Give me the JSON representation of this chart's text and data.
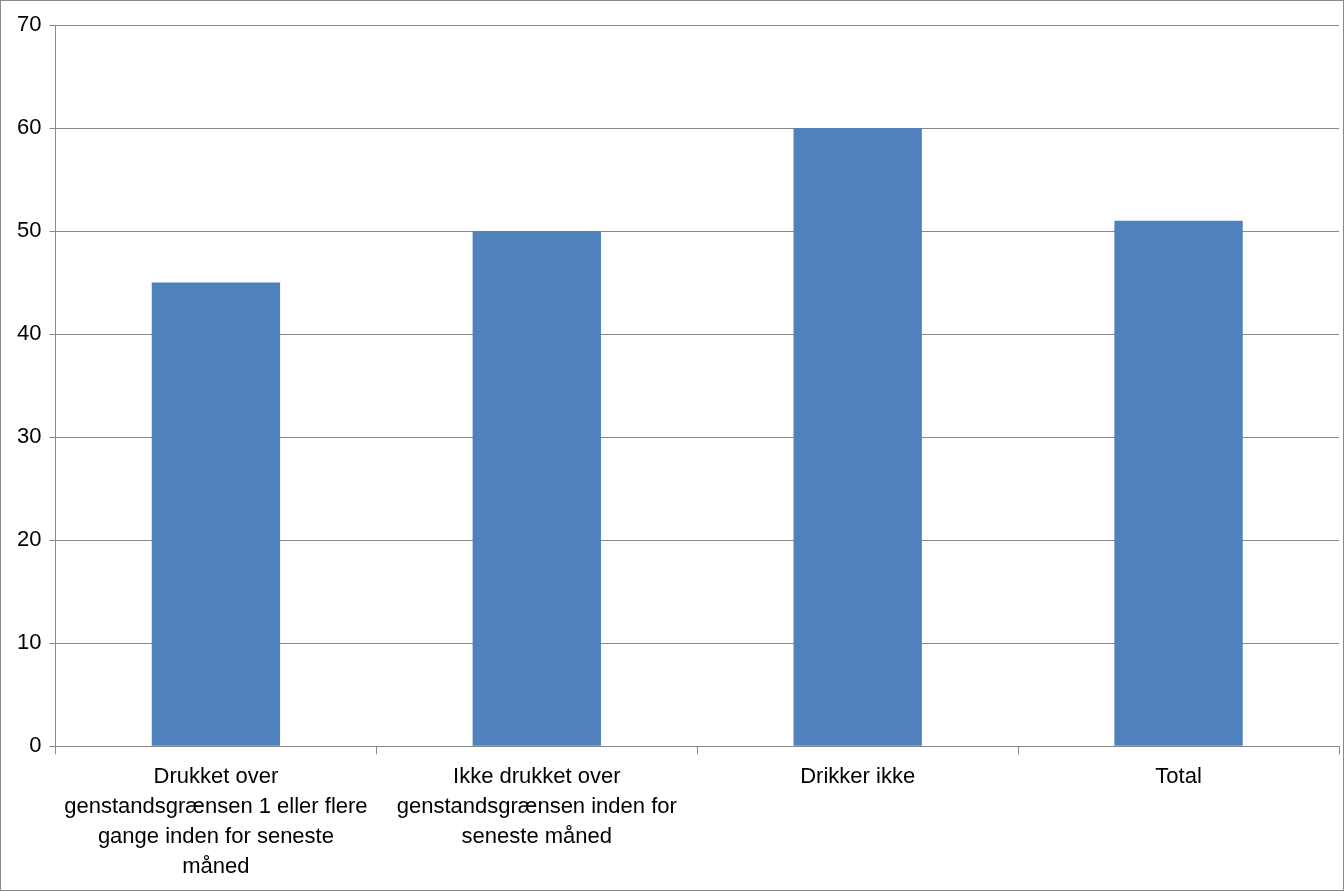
{
  "chart_data": {
    "type": "bar",
    "categories": [
      "Drukket over genstandsgrænsen 1 eller flere gange inden for seneste måned",
      "Ikke drukket over genstandsgrænsen inden for seneste måned",
      "Drikker ikke",
      "Total"
    ],
    "values": [
      45,
      50,
      60,
      51
    ],
    "color": "#4f81bd",
    "ylim": [
      0,
      70
    ],
    "yticks": [
      0,
      10,
      20,
      30,
      40,
      50,
      60,
      70
    ],
    "grid": "y",
    "legend": false
  }
}
